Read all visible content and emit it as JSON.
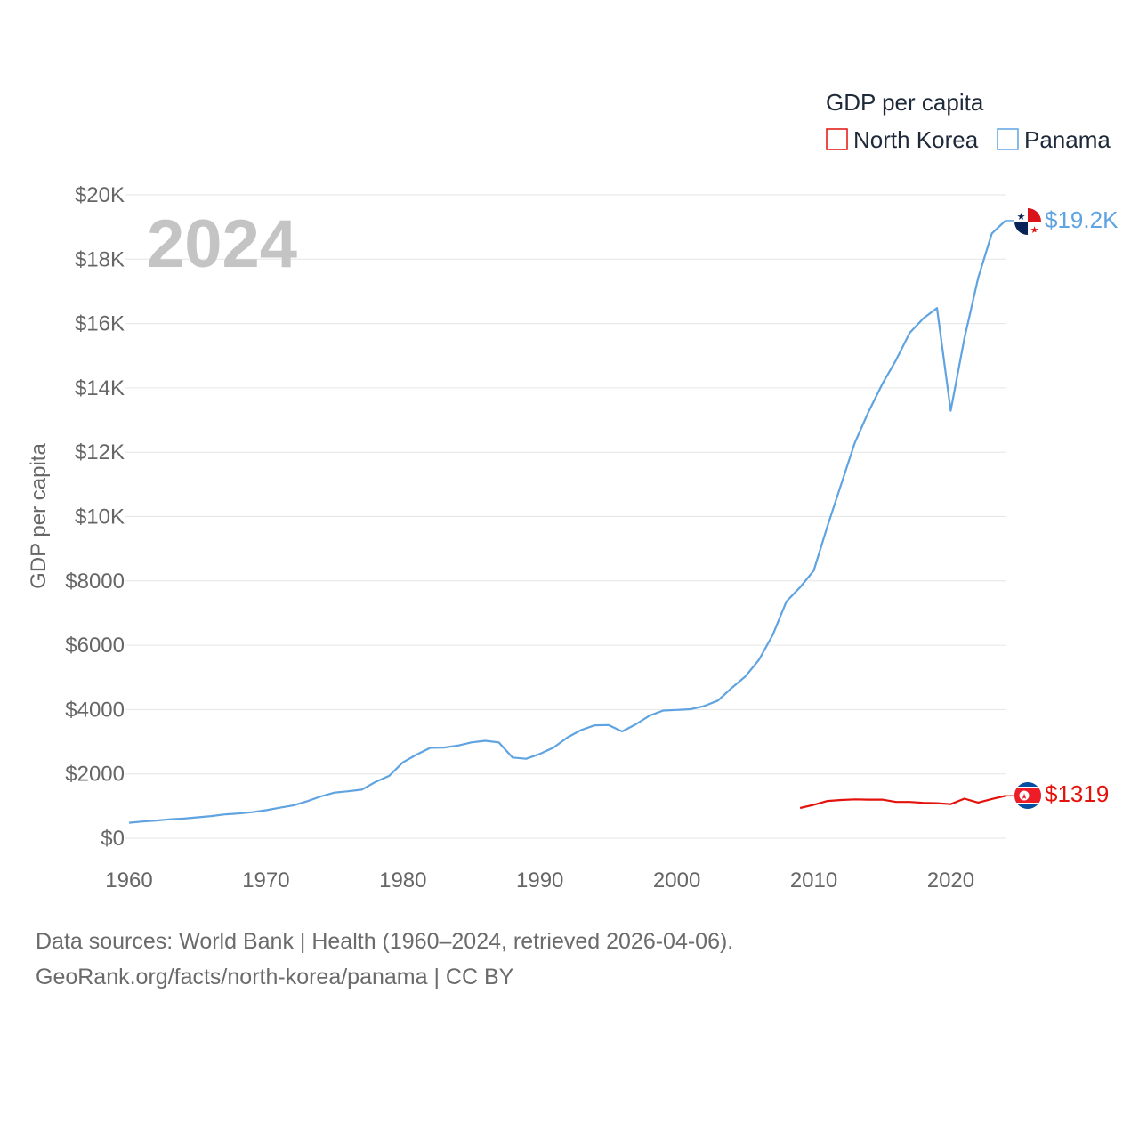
{
  "watermark_year": "2024",
  "footer": {
    "sources": "Data sources: World Bank | Health (1960–2024, retrieved 2026-04-06).",
    "credit": "GeoRank.org/facts/north-korea/panama | CC BY"
  },
  "colors": {
    "north_korea": "#e3120b",
    "panama": "#5fa3e0"
  },
  "chart_data": {
    "type": "line",
    "title": "",
    "xlabel": "",
    "ylabel": "GDP per capita",
    "legend_title": "GDP per capita",
    "legend_position": "top-right",
    "xlim": [
      1960,
      2024
    ],
    "ylim": [
      0,
      20000
    ],
    "x_ticks": [
      1960,
      1970,
      1980,
      1990,
      2000,
      2010,
      2020
    ],
    "x_tick_labels": [
      "1960",
      "1970",
      "1980",
      "1990",
      "2000",
      "2010",
      "2020"
    ],
    "y_ticks": [
      0,
      2000,
      4000,
      6000,
      8000,
      10000,
      12000,
      14000,
      16000,
      18000,
      20000
    ],
    "y_tick_labels": [
      "$0",
      "$2000",
      "$4000",
      "$6000",
      "$8000",
      "$10K",
      "$12K",
      "$14K",
      "$16K",
      "$18K",
      "$20K"
    ],
    "grid": true,
    "series": [
      {
        "name": "North Korea",
        "color": "#e3120b",
        "end_label": "$1319",
        "flag_icon": "north-korea-flag-icon",
        "x": [
          2009,
          2010,
          2011,
          2012,
          2013,
          2014,
          2015,
          2016,
          2017,
          2018,
          2019,
          2020,
          2021,
          2022,
          2023,
          2024
        ],
        "values": [
          940,
          1040,
          1160,
          1190,
          1210,
          1200,
          1200,
          1130,
          1130,
          1100,
          1090,
          1060,
          1230,
          1110,
          1220,
          1319
        ]
      },
      {
        "name": "Panama",
        "color": "#5fa3e0",
        "end_label": "$19.2K",
        "flag_icon": "panama-flag-icon",
        "x": [
          1960,
          1961,
          1962,
          1963,
          1964,
          1965,
          1966,
          1967,
          1968,
          1969,
          1970,
          1971,
          1972,
          1973,
          1974,
          1975,
          1976,
          1977,
          1978,
          1979,
          1980,
          1981,
          1982,
          1983,
          1984,
          1985,
          1986,
          1987,
          1988,
          1989,
          1990,
          1991,
          1992,
          1993,
          1994,
          1995,
          1996,
          1997,
          1998,
          1999,
          2000,
          2001,
          2002,
          2003,
          2004,
          2005,
          2006,
          2007,
          2008,
          2009,
          2010,
          2011,
          2012,
          2013,
          2014,
          2015,
          2016,
          2017,
          2018,
          2019,
          2020,
          2021,
          2022,
          2023,
          2024
        ],
        "values": [
          480,
          520,
          550,
          590,
          610,
          650,
          690,
          740,
          770,
          810,
          870,
          950,
          1020,
          1150,
          1300,
          1420,
          1460,
          1510,
          1750,
          1940,
          2360,
          2600,
          2810,
          2820,
          2880,
          2980,
          3030,
          2980,
          2510,
          2470,
          2620,
          2820,
          3130,
          3360,
          3510,
          3520,
          3320,
          3540,
          3810,
          3970,
          3990,
          4010,
          4110,
          4280,
          4670,
          5030,
          5550,
          6320,
          7360,
          7800,
          8320,
          9700,
          11000,
          12300,
          13260,
          14120,
          14860,
          15710,
          16160,
          16480,
          13290,
          15540,
          17410,
          18800,
          19200
        ]
      }
    ]
  }
}
